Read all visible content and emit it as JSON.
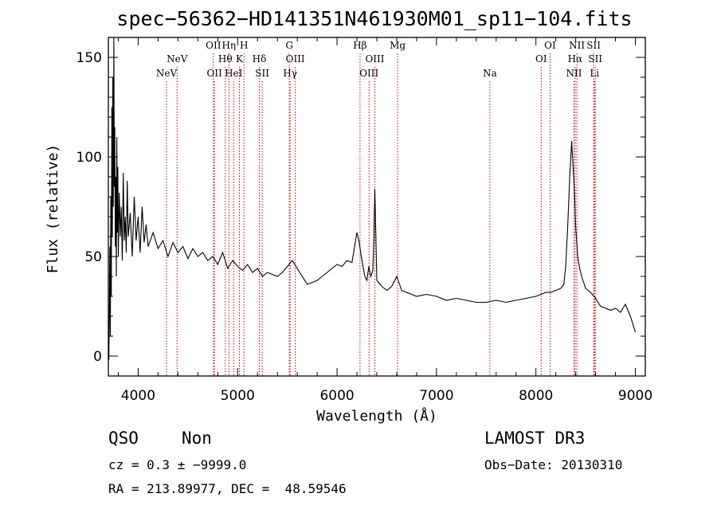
{
  "chart_data": {
    "type": "line",
    "title": "spec−56362−HD141351N461930M01_sp11−104.fits",
    "xlabel": "Wavelength (Å)",
    "ylabel": "Flux (relative)",
    "xlim": [
      3700,
      9100
    ],
    "ylim": [
      -10,
      160
    ],
    "xticks": [
      4000,
      5000,
      6000,
      7000,
      8000,
      9000
    ],
    "yticks": [
      0,
      50,
      100,
      150
    ],
    "grid": false,
    "series": [
      {
        "name": "spectrum",
        "x": [
          3700,
          3705,
          3710,
          3715,
          3720,
          3725,
          3730,
          3735,
          3740,
          3745,
          3750,
          3755,
          3760,
          3765,
          3770,
          3775,
          3780,
          3785,
          3790,
          3795,
          3800,
          3810,
          3820,
          3830,
          3840,
          3850,
          3860,
          3870,
          3880,
          3890,
          3900,
          3920,
          3940,
          3960,
          3980,
          4000,
          4020,
          4040,
          4060,
          4080,
          4100,
          4150,
          4200,
          4250,
          4300,
          4350,
          4400,
          4450,
          4500,
          4550,
          4600,
          4650,
          4700,
          4750,
          4800,
          4850,
          4900,
          4950,
          5000,
          5050,
          5100,
          5150,
          5200,
          5250,
          5300,
          5350,
          5400,
          5450,
          5500,
          5550,
          5600,
          5650,
          5700,
          5750,
          5800,
          5850,
          5900,
          5950,
          6000,
          6050,
          6100,
          6150,
          6200,
          6220,
          6250,
          6280,
          6300,
          6320,
          6340,
          6360,
          6370,
          6380,
          6390,
          6400,
          6450,
          6500,
          6550,
          6600,
          6650,
          6700,
          6800,
          6900,
          7000,
          7100,
          7200,
          7300,
          7400,
          7500,
          7600,
          7700,
          7800,
          7900,
          8000,
          8100,
          8150,
          8200,
          8250,
          8280,
          8300,
          8320,
          8340,
          8360,
          8370,
          8380,
          8390,
          8400,
          8420,
          8440,
          8460,
          8480,
          8500,
          8550,
          8600,
          8650,
          8700,
          8750,
          8800,
          8850,
          8900,
          8950,
          9000
        ],
        "values": [
          0,
          -2,
          20,
          55,
          10,
          80,
          30,
          125,
          60,
          140,
          75,
          160,
          85,
          115,
          55,
          90,
          40,
          110,
          62,
          95,
          50,
          82,
          60,
          75,
          48,
          92,
          58,
          70,
          52,
          88,
          60,
          72,
          50,
          80,
          58,
          70,
          52,
          75,
          57,
          66,
          55,
          62,
          54,
          58,
          50,
          57,
          52,
          55,
          49,
          54,
          50,
          52,
          48,
          50,
          46,
          52,
          44,
          48,
          45,
          43,
          46,
          42,
          44,
          40,
          42,
          41,
          40,
          42,
          45,
          48,
          44,
          40,
          36,
          37,
          38,
          40,
          42,
          44,
          46,
          45,
          48,
          47,
          62,
          58,
          48,
          40,
          38,
          45,
          40,
          43,
          60,
          84,
          60,
          38,
          35,
          33,
          35,
          40,
          33,
          32,
          30,
          31,
          30,
          28,
          29,
          28,
          27,
          27,
          28,
          27,
          28,
          29,
          30,
          32,
          32,
          33,
          34,
          36,
          45,
          65,
          90,
          108,
          98,
          90,
          80,
          65,
          50,
          44,
          40,
          37,
          34,
          32,
          29,
          25,
          24,
          23,
          24,
          22,
          26,
          20,
          12
        ]
      }
    ],
    "emission_lines": [
      {
        "label": "NeV",
        "x": 4285,
        "row": 3
      },
      {
        "label": "NeV",
        "x": 4391,
        "row": 2
      },
      {
        "label": "OII",
        "x": 4756,
        "row": 1
      },
      {
        "label": "OII",
        "x": 4767,
        "row": 3
      },
      {
        "label": "Hθ",
        "x": 4876,
        "row": 2
      },
      {
        "label": "Hη",
        "x": 4912,
        "row": 1
      },
      {
        "label": "HeI",
        "x": 4960,
        "row": 3
      },
      {
        "label": "K",
        "x": 5018,
        "row": 2
      },
      {
        "label": "H",
        "x": 5064,
        "row": 1
      },
      {
        "label": "Hδ",
        "x": 5218,
        "row": 2
      },
      {
        "label": "SII",
        "x": 5247,
        "row": 3
      },
      {
        "label": "G",
        "x": 5520,
        "row": 1
      },
      {
        "label": "Hγ",
        "x": 5528,
        "row": 3
      },
      {
        "label": "OIII",
        "x": 5580,
        "row": 2
      },
      {
        "label": "Hβ",
        "x": 6231,
        "row": 1
      },
      {
        "label": "OIII",
        "x": 6322,
        "row": 3
      },
      {
        "label": "OIII",
        "x": 6380,
        "row": 2
      },
      {
        "label": "Mg",
        "x": 6609,
        "row": 1
      },
      {
        "label": "Na",
        "x": 7537,
        "row": 3
      },
      {
        "label": "OI",
        "x": 8053,
        "row": 2
      },
      {
        "label": "OI",
        "x": 8142,
        "row": 1
      },
      {
        "label": "NII",
        "x": 8383,
        "row": 3
      },
      {
        "label": "Hα",
        "x": 8394,
        "row": 2
      },
      {
        "label": "NII",
        "x": 8412,
        "row": 1
      },
      {
        "label": "SII",
        "x": 8580,
        "row": 1
      },
      {
        "label": "SII",
        "x": 8597,
        "row": 2
      },
      {
        "label": "Li",
        "x": 8589,
        "row": 3
      }
    ],
    "line_color": "#cc0000"
  },
  "footer": {
    "class_label": "QSO",
    "subclass_label": "Non",
    "cz_text": "cz = 0.3 ± −9999.0",
    "coords_text": "RA = 213.89977, DEC =  48.59546",
    "survey_label": "LAMOST DR3",
    "obs_date_text": "Obs−Date: 20130310"
  }
}
